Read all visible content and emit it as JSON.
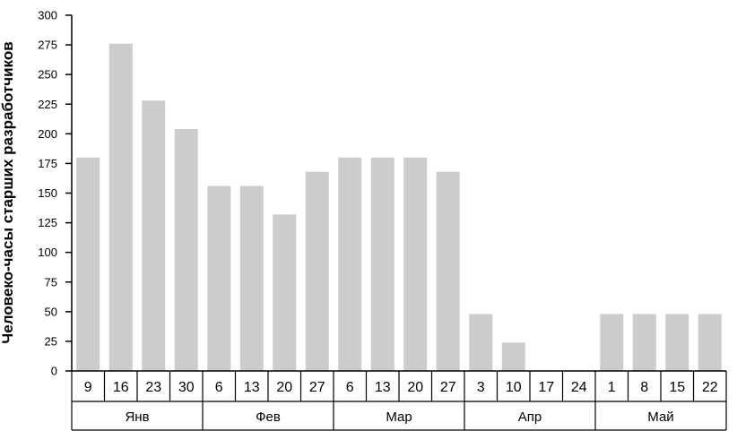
{
  "chart_data": {
    "type": "bar",
    "ylabel": "Человеко-часы старших разработчиков",
    "xlabel": "",
    "title": "",
    "ylim": [
      0,
      300
    ],
    "yticks": [
      0,
      25,
      50,
      75,
      100,
      125,
      150,
      175,
      200,
      225,
      250,
      275,
      300
    ],
    "grid": false,
    "legend": "none",
    "bar_color": "#cccccc",
    "categories": [
      "9",
      "16",
      "23",
      "30",
      "6",
      "13",
      "20",
      "27",
      "6",
      "13",
      "20",
      "27",
      "3",
      "10",
      "17",
      "24",
      "1",
      "8",
      "15",
      "22"
    ],
    "values": [
      180,
      276,
      228,
      204,
      156,
      156,
      132,
      168,
      180,
      180,
      180,
      168,
      48,
      24,
      0,
      0,
      48,
      48,
      48,
      48
    ],
    "groups": [
      {
        "label": "Янв",
        "count": 4
      },
      {
        "label": "Фев",
        "count": 4
      },
      {
        "label": "Мар",
        "count": 4
      },
      {
        "label": "Апр",
        "count": 4
      },
      {
        "label": "Май",
        "count": 4
      }
    ]
  }
}
